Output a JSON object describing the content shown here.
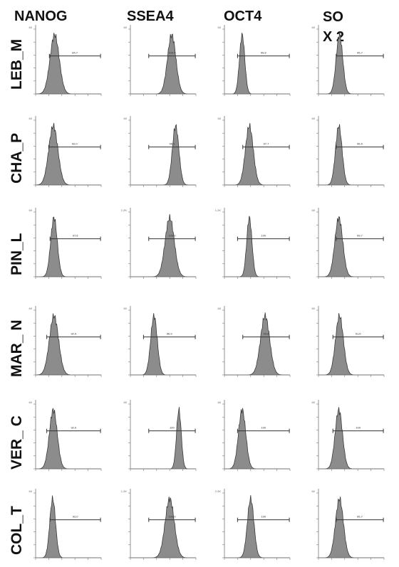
{
  "columns": [
    "NANOG",
    "SSEA4",
    "OCT4",
    "SOX 2"
  ],
  "rows": [
    "LEB_M",
    "CHA_P",
    "PIN_L",
    "MAR_ N",
    "VER_ C",
    "COL_T"
  ],
  "colors": {
    "fill": "#8c8c8c",
    "stroke": "#3a3a3a",
    "axis": "#777777",
    "gate": "#333333"
  },
  "chart_data": {
    "type": "histogram-grid",
    "x_scale": "log",
    "xlim_log10": [
      0,
      5
    ],
    "y_tick_labels": [
      [
        "60",
        "60",
        "60",
        "60"
      ],
      [
        "60",
        "60",
        "60",
        "60"
      ],
      [
        "60",
        "1.2K",
        "1.2K",
        "60"
      ],
      [
        "60",
        "60",
        "60",
        "60"
      ],
      [
        "60",
        "60",
        "60",
        "60"
      ],
      [
        "60",
        "1.2K",
        "2.0K",
        "60"
      ]
    ],
    "panels": [
      [
        {
          "peak": 1.45,
          "width": 0.35,
          "gate": [
            1.05,
            4.95
          ],
          "label": "84,7"
        },
        {
          "peak": 3.15,
          "width": 0.32,
          "gate": [
            1.4,
            4.95
          ],
          "label": "100,0"
        },
        {
          "peak": 1.35,
          "width": 0.2,
          "gate": [
            1.0,
            4.95
          ],
          "label": "99,8"
        },
        {
          "peak": 1.6,
          "width": 0.25,
          "gate": [
            1.35,
            4.95
          ],
          "label": "95,7"
        }
      ],
      [
        {
          "peak": 1.35,
          "width": 0.35,
          "gate": [
            1.0,
            4.95
          ],
          "label": "92,0"
        },
        {
          "peak": 3.45,
          "width": 0.25,
          "gate": [
            1.4,
            4.95
          ],
          "label": "96,9"
        },
        {
          "peak": 1.9,
          "width": 0.3,
          "gate": [
            1.4,
            4.95
          ],
          "label": "97,7"
        },
        {
          "peak": 1.55,
          "width": 0.25,
          "gate": [
            1.35,
            4.95
          ],
          "label": "96,5"
        }
      ],
      [
        {
          "peak": 1.4,
          "width": 0.25,
          "gate": [
            1.1,
            4.95
          ],
          "label": "97,6"
        },
        {
          "peak": 3.0,
          "width": 0.35,
          "gate": [
            1.4,
            4.95
          ],
          "label": "100,0"
        },
        {
          "peak": 1.9,
          "width": 0.2,
          "gate": [
            1.0,
            4.95
          ],
          "label": "100"
        },
        {
          "peak": 1.55,
          "width": 0.3,
          "gate": [
            1.35,
            4.95
          ],
          "label": "99,7"
        }
      ],
      [
        {
          "peak": 1.4,
          "width": 0.35,
          "gate": [
            0.85,
            4.95
          ],
          "label": "92,0"
        },
        {
          "peak": 1.8,
          "width": 0.25,
          "gate": [
            1.0,
            4.95
          ],
          "label": "96,9"
        },
        {
          "peak": 3.1,
          "width": 0.35,
          "gate": [
            1.4,
            4.95
          ],
          "label": "99,8"
        },
        {
          "peak": 1.6,
          "width": 0.3,
          "gate": [
            1.1,
            4.95
          ],
          "label": "91,6"
        }
      ],
      [
        {
          "peak": 1.35,
          "width": 0.3,
          "gate": [
            0.85,
            4.95
          ],
          "label": "92,0"
        },
        {
          "peak": 3.7,
          "width": 0.18,
          "gate": [
            1.4,
            4.95
          ],
          "label": "100"
        },
        {
          "peak": 1.35,
          "width": 0.28,
          "gate": [
            1.0,
            4.95
          ],
          "label": "100"
        },
        {
          "peak": 1.55,
          "width": 0.28,
          "gate": [
            1.1,
            4.95
          ],
          "label": "100"
        }
      ],
      [
        {
          "peak": 1.3,
          "width": 0.22,
          "gate": [
            1.1,
            4.95
          ],
          "label": "92,0"
        },
        {
          "peak": 3.0,
          "width": 0.35,
          "gate": [
            1.4,
            4.95
          ],
          "label": "100,0"
        },
        {
          "peak": 2.0,
          "width": 0.25,
          "gate": [
            1.0,
            4.95
          ],
          "label": "100"
        },
        {
          "peak": 1.6,
          "width": 0.3,
          "gate": [
            1.35,
            4.95
          ],
          "label": "95,7"
        }
      ]
    ]
  }
}
